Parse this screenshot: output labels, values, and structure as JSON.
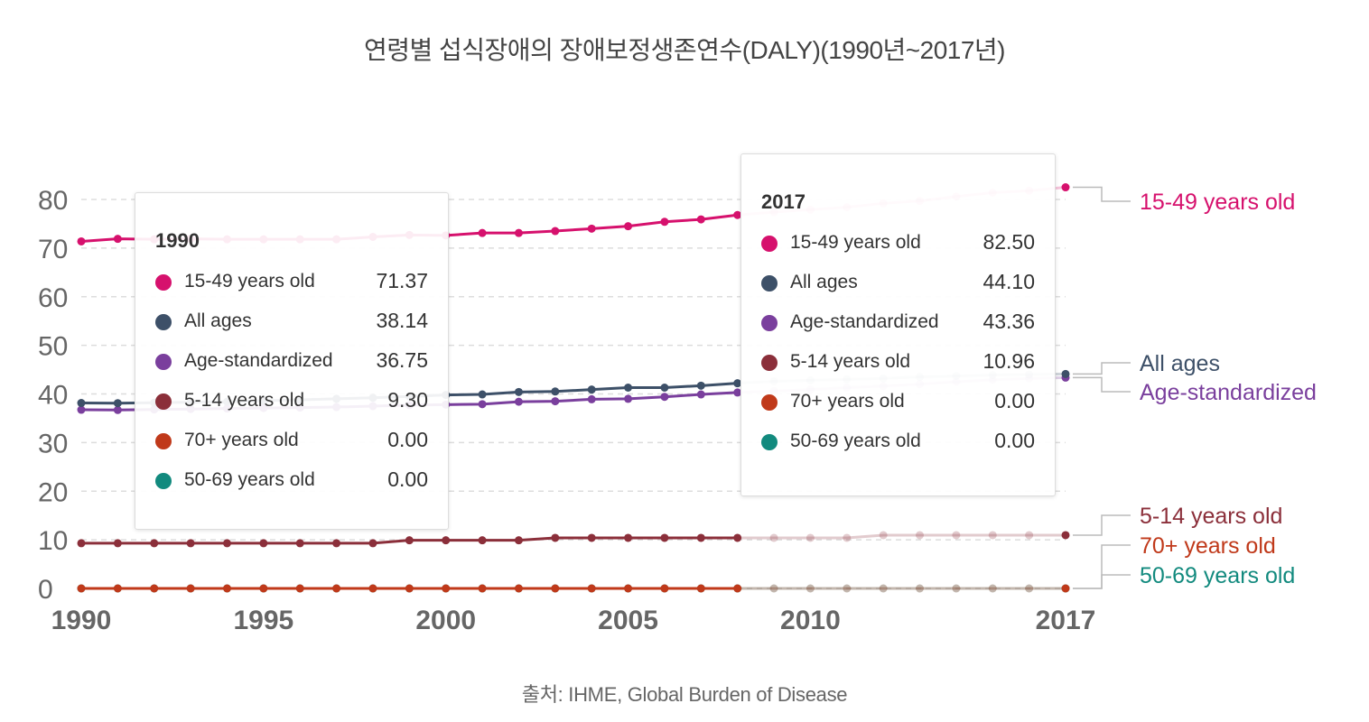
{
  "title": "연령별 섭식장애의 장애보정생존연수(DALY)(1990년~2017년)",
  "source": "출처: IHME, Global Burden of Disease",
  "chart_data": {
    "type": "line",
    "title": "연령별 섭식장애의 장애보정생존연수(DALY)(1990년~2017년)",
    "xlabel": "",
    "ylabel": "",
    "xlim": [
      1990,
      2017
    ],
    "ylim": [
      0,
      85
    ],
    "x_ticks": [
      1990,
      1995,
      2000,
      2005,
      2010,
      2017
    ],
    "y_ticks": [
      0,
      10,
      20,
      30,
      40,
      50,
      60,
      70,
      80
    ],
    "grid": true,
    "x": [
      1990,
      1991,
      1992,
      1993,
      1994,
      1995,
      1996,
      1997,
      1998,
      1999,
      2000,
      2001,
      2002,
      2003,
      2004,
      2005,
      2006,
      2007,
      2008,
      2009,
      2010,
      2011,
      2012,
      2013,
      2014,
      2015,
      2016,
      2017
    ],
    "series": [
      {
        "name": "15-49 years old",
        "color": "#d6116d",
        "values": [
          71.37,
          71.9,
          71.8,
          71.9,
          71.8,
          71.8,
          71.8,
          71.8,
          72.3,
          72.7,
          72.6,
          73.1,
          73.1,
          73.5,
          74.0,
          74.5,
          75.4,
          75.9,
          76.8,
          77.4,
          77.9,
          78.4,
          79.2,
          79.7,
          80.6,
          81.4,
          81.8,
          82.5
        ]
      },
      {
        "name": "All ages",
        "color": "#3d5068",
        "values": [
          38.14,
          38.1,
          38.2,
          38.3,
          38.4,
          38.6,
          38.8,
          39.0,
          39.2,
          39.5,
          39.8,
          39.9,
          40.4,
          40.5,
          40.9,
          41.3,
          41.3,
          41.7,
          42.2,
          42.6,
          42.8,
          43.0,
          43.2,
          43.5,
          43.7,
          43.9,
          44.0,
          44.1
        ]
      },
      {
        "name": "Age-standardized",
        "color": "#7a3f9d",
        "values": [
          36.75,
          36.7,
          36.8,
          36.9,
          37.0,
          37.1,
          37.2,
          37.3,
          37.5,
          37.7,
          37.8,
          37.9,
          38.4,
          38.5,
          38.9,
          39.0,
          39.4,
          39.9,
          40.3,
          40.6,
          40.9,
          41.3,
          41.6,
          42.0,
          42.5,
          42.9,
          43.2,
          43.36
        ]
      },
      {
        "name": "5-14 years old",
        "color": "#8b2f3a",
        "values": [
          9.3,
          9.3,
          9.3,
          9.3,
          9.3,
          9.3,
          9.3,
          9.3,
          9.3,
          9.9,
          9.9,
          9.9,
          9.9,
          10.4,
          10.4,
          10.4,
          10.4,
          10.4,
          10.4,
          10.4,
          10.4,
          10.4,
          10.96,
          10.96,
          10.96,
          10.96,
          10.96,
          10.96
        ]
      },
      {
        "name": "70+ years old",
        "color": "#c0391a",
        "values": [
          0,
          0,
          0,
          0,
          0,
          0,
          0,
          0,
          0,
          0,
          0,
          0,
          0,
          0,
          0,
          0,
          0,
          0,
          0,
          0,
          0,
          0,
          0,
          0,
          0,
          0,
          0,
          0
        ]
      },
      {
        "name": "50-69 years old",
        "color": "#128a7e",
        "values": [
          0,
          0,
          0,
          0,
          0,
          0,
          0,
          0,
          0,
          0,
          0,
          0,
          0,
          0,
          0,
          0,
          0,
          0,
          0,
          0,
          0,
          0,
          0,
          0,
          0,
          0,
          0,
          0
        ]
      }
    ],
    "end_labels": [
      "15-49 years old",
      "All ages",
      "Age-standardized",
      "5-14 years old",
      "70+ years old",
      "50-69 years old"
    ],
    "tooltips": [
      {
        "year": "1990",
        "rows": [
          {
            "label": "15-49 years old",
            "value": "71.37",
            "color": "#d6116d"
          },
          {
            "label": "All ages",
            "value": "38.14",
            "color": "#3d5068"
          },
          {
            "label": "Age-standardized",
            "value": "36.75",
            "color": "#7a3f9d"
          },
          {
            "label": "5-14 years old",
            "value": "9.30",
            "color": "#8b2f3a"
          },
          {
            "label": "70+ years old",
            "value": "0.00",
            "color": "#c0391a"
          },
          {
            "label": "50-69 years old",
            "value": "0.00",
            "color": "#128a7e"
          }
        ]
      },
      {
        "year": "2017",
        "rows": [
          {
            "label": "15-49 years old",
            "value": "82.50",
            "color": "#d6116d"
          },
          {
            "label": "All ages",
            "value": "44.10",
            "color": "#3d5068"
          },
          {
            "label": "Age-standardized",
            "value": "43.36",
            "color": "#7a3f9d"
          },
          {
            "label": "5-14 years old",
            "value": "10.96",
            "color": "#8b2f3a"
          },
          {
            "label": "70+ years old",
            "value": "0.00",
            "color": "#c0391a"
          },
          {
            "label": "50-69 years old",
            "value": "0.00",
            "color": "#128a7e"
          }
        ]
      }
    ]
  }
}
